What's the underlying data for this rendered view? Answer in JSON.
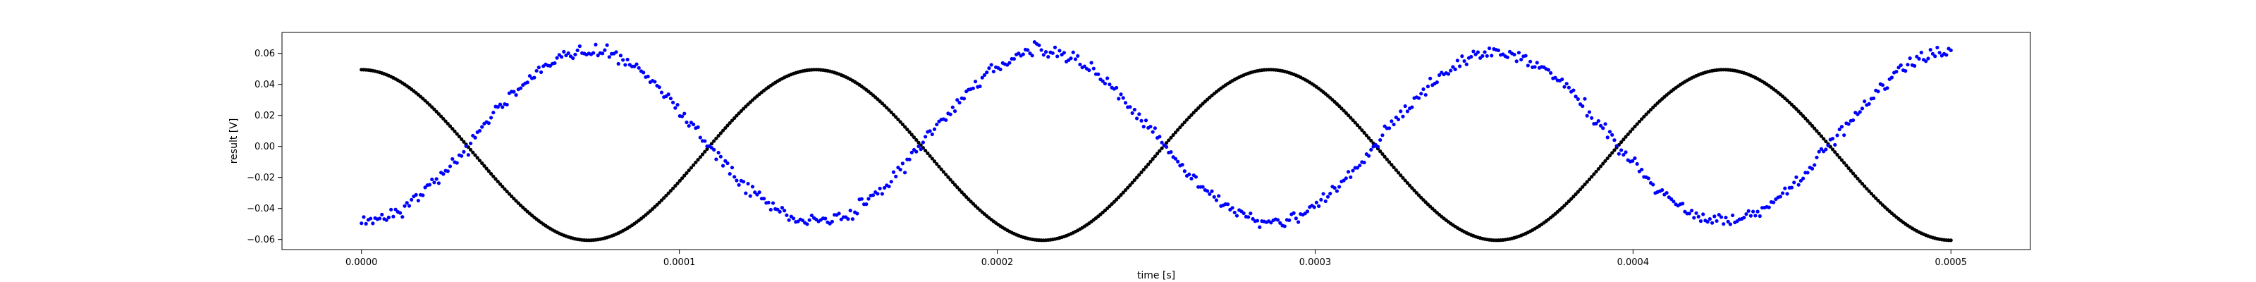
{
  "chart_data": {
    "type": "scatter",
    "title": "",
    "xlabel": "time [s]",
    "ylabel": "result [V]",
    "xlim": [
      -2.5e-05,
      0.000525
    ],
    "ylim": [
      -0.0665,
      0.0735
    ],
    "xticks": [
      0.0,
      0.0001,
      0.0002,
      0.0003,
      0.0004,
      0.0005
    ],
    "xtick_labels": [
      "0.0000",
      "0.0001",
      "0.0002",
      "0.0003",
      "0.0004",
      "0.0005"
    ],
    "yticks": [
      -0.06,
      -0.04,
      -0.02,
      0.0,
      0.02,
      0.04,
      0.06
    ],
    "ytick_labels": [
      "−0.06",
      "−0.04",
      "−0.02",
      "0.00",
      "0.02",
      "0.04",
      "0.06"
    ],
    "grid": false,
    "legend": "none",
    "series": [
      {
        "color": "#000000",
        "model": {
          "kind": "sine",
          "amplitude": 0.055,
          "offset": -0.0055,
          "frequency_hz": 7000,
          "phase_rad": 0.0,
          "x_start": 0.0,
          "x_end": 0.0005,
          "points": 700,
          "noise": 0.0
        }
      },
      {
        "color": "#0000ff",
        "model": {
          "kind": "sine",
          "amplitude": -0.055,
          "offset": 0.0065,
          "frequency_hz": 7000,
          "phase_rad": 0.0,
          "x_start": 0.0,
          "x_end": 0.0005,
          "points": 700,
          "noise": 0.003
        }
      }
    ]
  }
}
